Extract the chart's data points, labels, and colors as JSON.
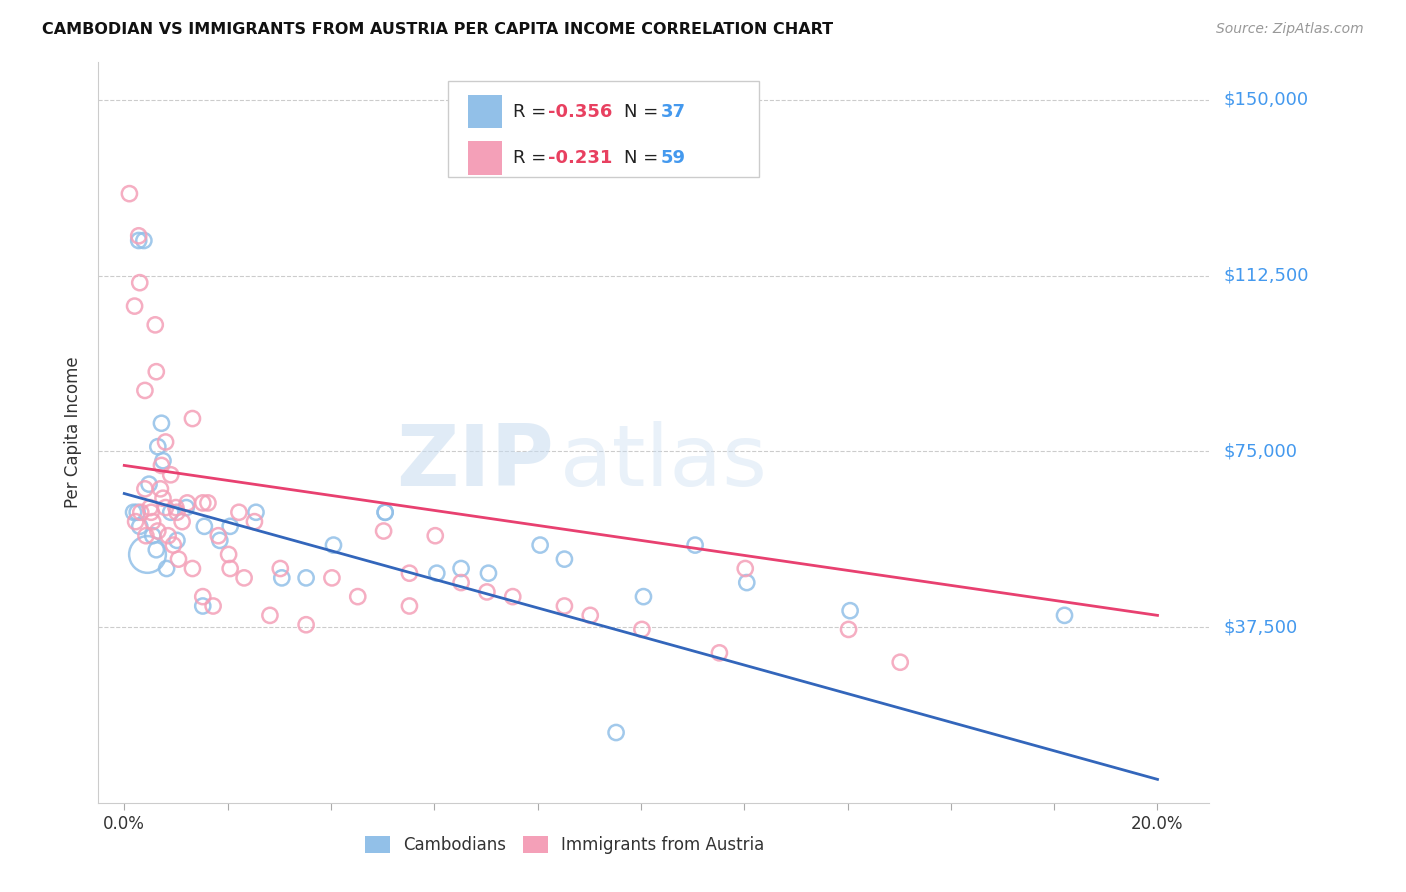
{
  "title": "CAMBODIAN VS IMMIGRANTS FROM AUSTRIA PER CAPITA INCOME CORRELATION CHART",
  "source": "Source: ZipAtlas.com",
  "xlabel_ticks": [
    "0.0%",
    "",
    "",
    "",
    "",
    "",
    "",
    "",
    "",
    "",
    "20.0%"
  ],
  "xlabel_vals": [
    0.0,
    2.0,
    4.0,
    6.0,
    8.0,
    10.0,
    12.0,
    14.0,
    16.0,
    18.0,
    20.0
  ],
  "ylabel_labels": [
    "$150,000",
    "$112,500",
    "$75,000",
    "$37,500"
  ],
  "ylabel_vals": [
    150000,
    112500,
    75000,
    37500
  ],
  "ylim": [
    0,
    158000
  ],
  "xlim": [
    -0.5,
    21.0
  ],
  "blue_label": "Cambodians",
  "pink_label": "Immigrants from Austria",
  "blue_R": -0.356,
  "blue_N": 37,
  "pink_R": -0.231,
  "pink_N": 59,
  "blue_color": "#92C0E8",
  "pink_color": "#F4A0B8",
  "blue_line_color": "#3366BB",
  "pink_line_color": "#E84070",
  "blue_line_x0": 0.0,
  "blue_line_y0": 66000,
  "blue_line_x1": 20.0,
  "blue_line_y1": 5000,
  "pink_line_x0": 0.0,
  "pink_line_y0": 72000,
  "pink_line_x1": 20.0,
  "pink_line_y1": 40000,
  "blue_x": [
    0.18,
    0.38,
    0.28,
    0.48,
    0.25,
    0.55,
    0.65,
    0.75,
    0.72,
    0.45,
    0.9,
    1.2,
    1.55,
    1.85,
    2.05,
    2.55,
    3.05,
    4.05,
    5.05,
    6.05,
    7.05,
    8.05,
    10.05,
    11.05,
    12.05,
    14.05,
    0.3,
    0.62,
    0.82,
    1.02,
    1.52,
    3.52,
    6.52,
    8.52,
    9.52,
    18.2,
    5.05
  ],
  "blue_y": [
    62000,
    120000,
    120000,
    68000,
    62000,
    57000,
    76000,
    73000,
    81000,
    53000,
    62000,
    63000,
    59000,
    56000,
    59000,
    62000,
    48000,
    55000,
    62000,
    49000,
    49000,
    55000,
    44000,
    55000,
    47000,
    41000,
    59000,
    54000,
    50000,
    56000,
    42000,
    48000,
    50000,
    52000,
    15000,
    40000,
    62000
  ],
  "blue_sizes": [
    120,
    120,
    120,
    120,
    120,
    120,
    120,
    120,
    120,
    700,
    120,
    120,
    120,
    120,
    120,
    120,
    120,
    120,
    120,
    120,
    120,
    120,
    120,
    120,
    120,
    120,
    120,
    120,
    120,
    120,
    120,
    120,
    120,
    120,
    120,
    120,
    120
  ],
  "pink_x": [
    0.1,
    0.2,
    0.28,
    0.3,
    0.4,
    0.4,
    0.5,
    0.52,
    0.6,
    0.62,
    0.7,
    0.72,
    0.8,
    0.8,
    0.9,
    1.0,
    1.02,
    1.12,
    1.22,
    1.32,
    1.52,
    1.62,
    1.82,
    2.02,
    2.22,
    2.52,
    3.02,
    4.02,
    5.02,
    5.52,
    6.02,
    7.02,
    0.22,
    0.32,
    0.42,
    0.55,
    0.65,
    0.75,
    0.85,
    0.95,
    1.05,
    1.32,
    1.52,
    1.72,
    2.05,
    2.32,
    2.82,
    3.52,
    4.52,
    5.52,
    6.52,
    7.52,
    8.52,
    9.02,
    10.02,
    11.52,
    12.02,
    14.02,
    15.02
  ],
  "pink_y": [
    130000,
    106000,
    121000,
    111000,
    67000,
    88000,
    63000,
    62000,
    102000,
    92000,
    67000,
    72000,
    63000,
    77000,
    70000,
    63000,
    62000,
    60000,
    64000,
    82000,
    64000,
    64000,
    57000,
    53000,
    62000,
    60000,
    50000,
    48000,
    58000,
    42000,
    57000,
    45000,
    60000,
    62000,
    57000,
    60000,
    58000,
    65000,
    57000,
    55000,
    52000,
    50000,
    44000,
    42000,
    50000,
    48000,
    40000,
    38000,
    44000,
    49000,
    47000,
    44000,
    42000,
    40000,
    37000,
    32000,
    50000,
    37000,
    30000
  ],
  "pink_sizes": [
    120,
    120,
    120,
    120,
    120,
    120,
    120,
    120,
    120,
    120,
    120,
    120,
    120,
    120,
    120,
    120,
    120,
    120,
    120,
    120,
    120,
    120,
    120,
    120,
    120,
    120,
    120,
    120,
    120,
    120,
    120,
    120,
    120,
    120,
    120,
    120,
    120,
    120,
    120,
    120,
    120,
    120,
    120,
    120,
    120,
    120,
    120,
    120,
    120,
    120,
    120,
    120,
    120,
    120,
    120,
    120,
    120,
    120,
    120
  ]
}
